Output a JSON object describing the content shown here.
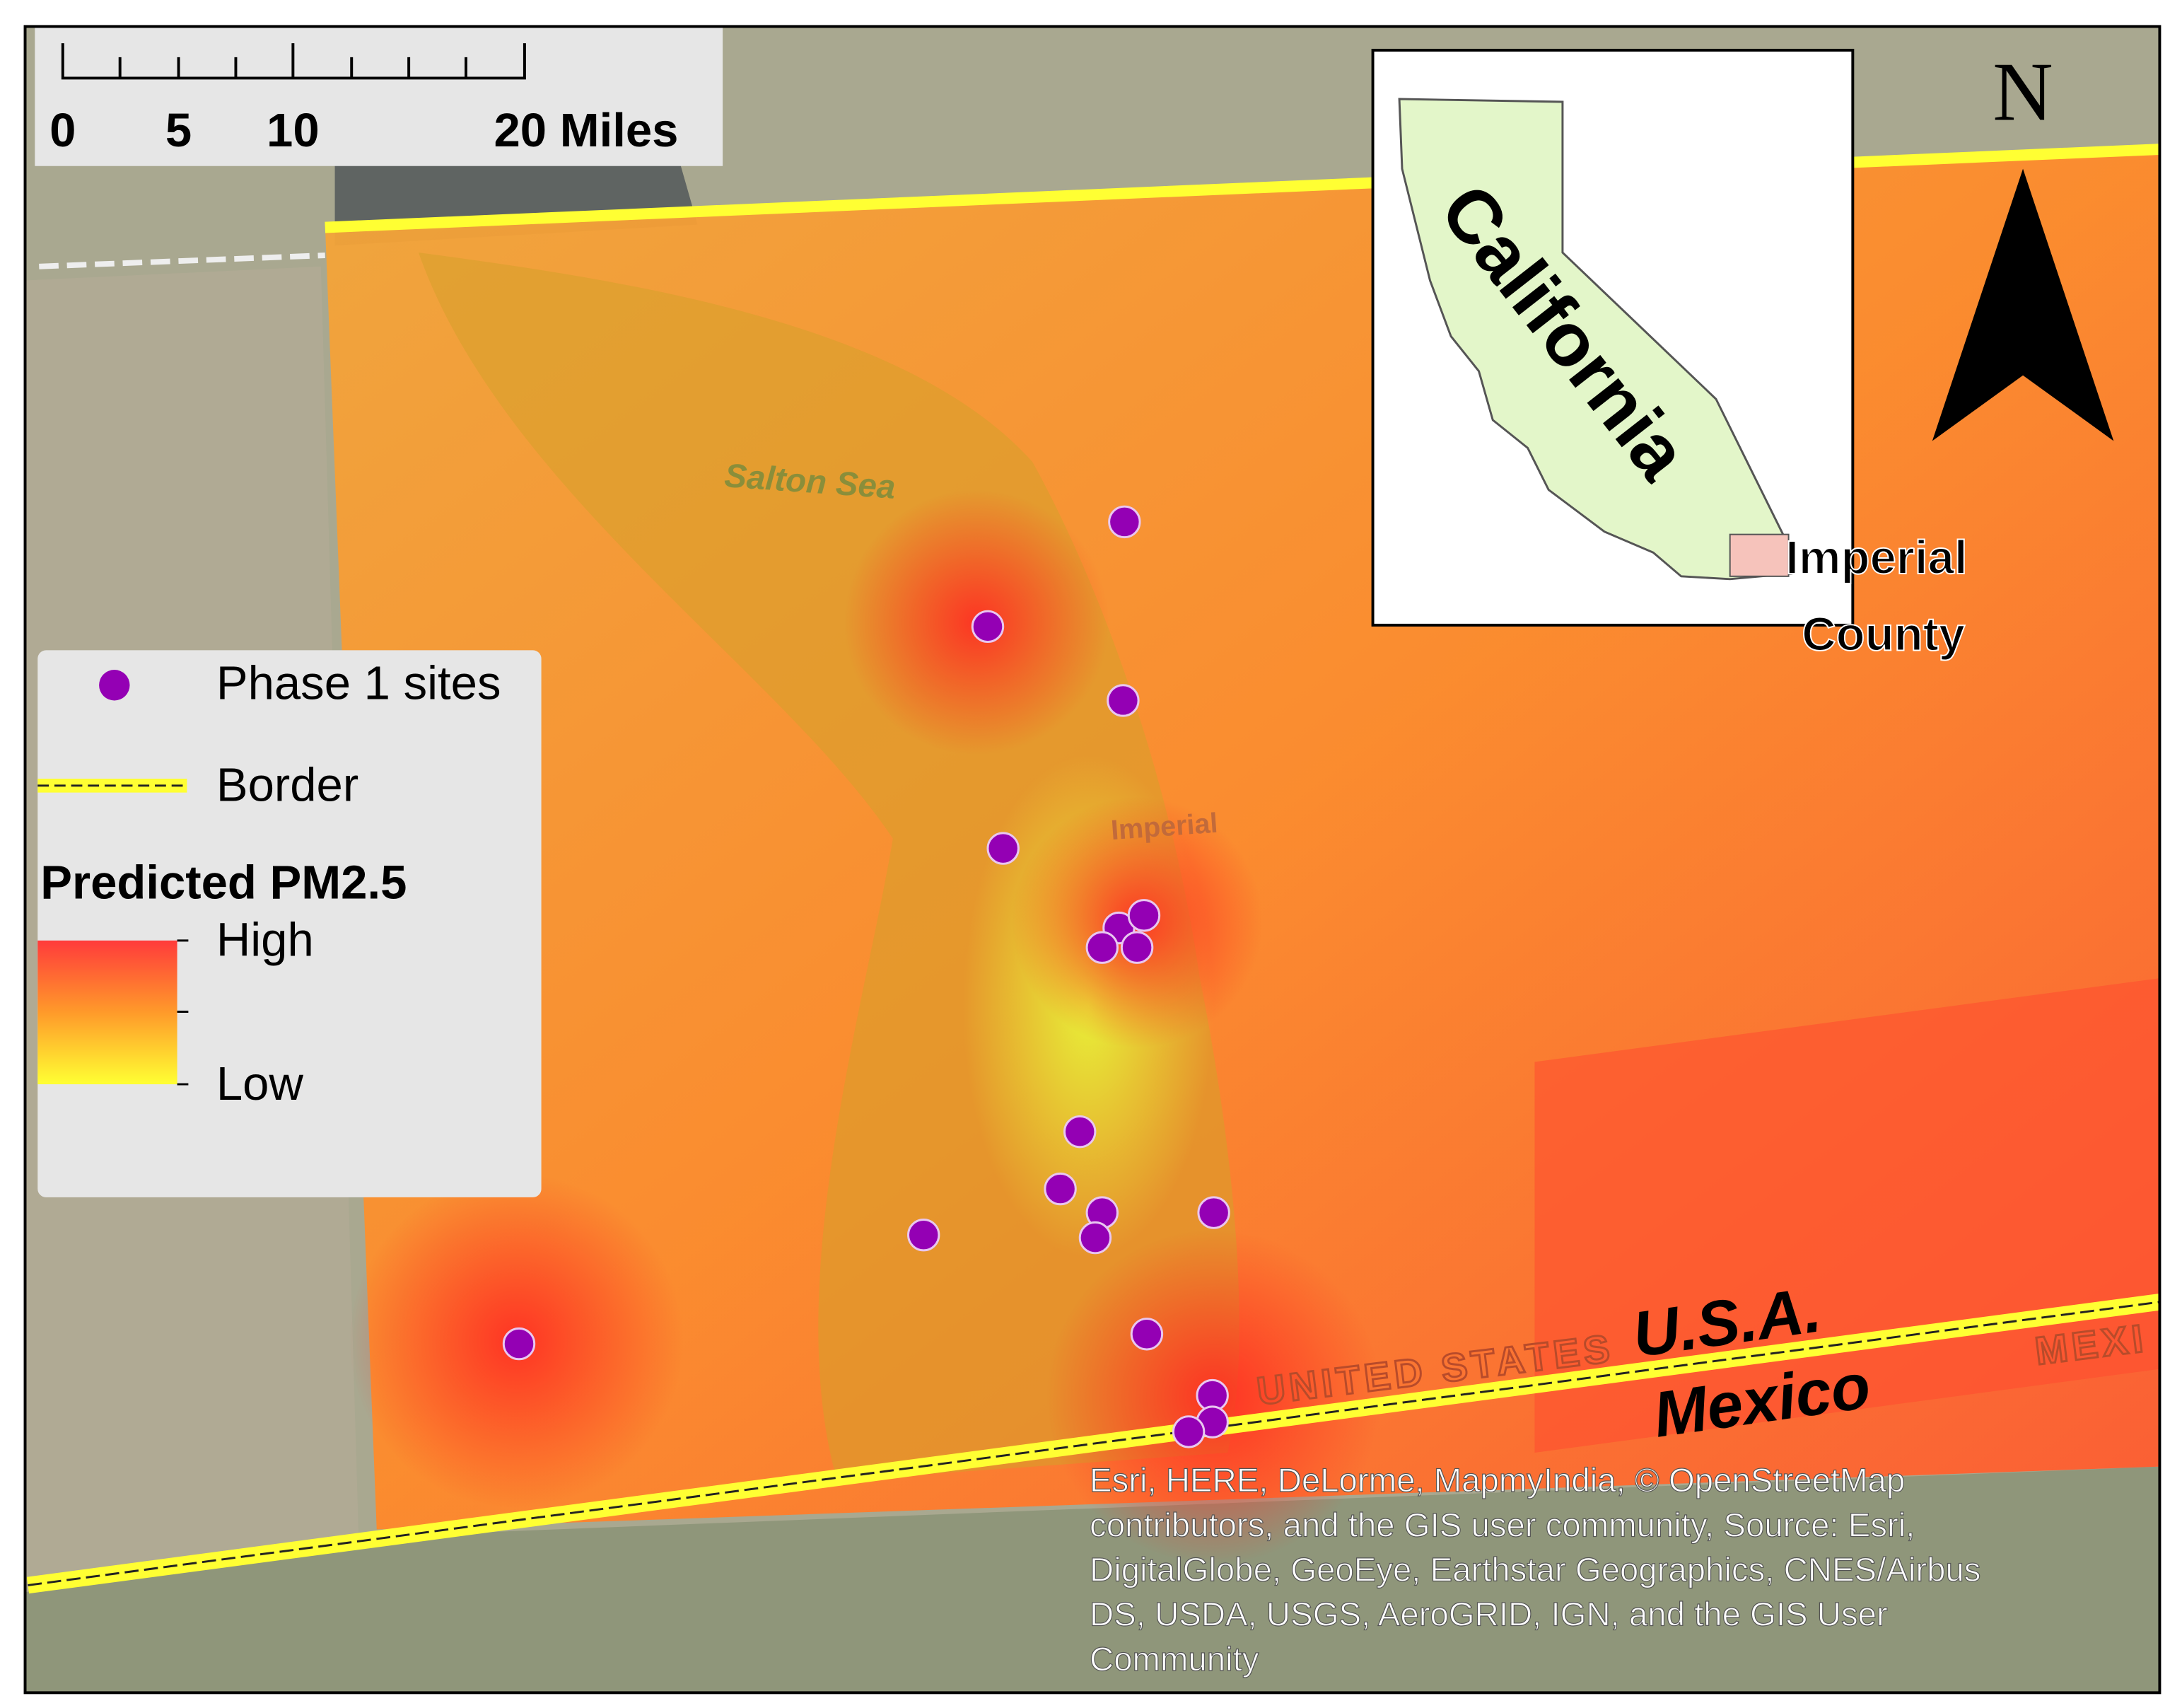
{
  "scale_bar": {
    "labels": [
      "0",
      "5",
      "10",
      "20 Miles"
    ]
  },
  "basemap_labels": {
    "sea": "Salton Sea",
    "city": "Imperial",
    "country_us": "UNITED STATES",
    "country_mx": "MEXI"
  },
  "legend": {
    "sites": "Phase 1 sites",
    "border": "Border",
    "surface_title": "Predicted PM2.5",
    "high": "High",
    "low": "Low"
  },
  "inset": {
    "state": "California",
    "county_line1": "Imperial",
    "county_line2": "County"
  },
  "north": "N",
  "border_labels": {
    "north_side": "U.S.A.",
    "south_side": "Mexico"
  },
  "attribution": [
    "Esri, HERE, DeLorme, MapmyIndia, © OpenStreetMap",
    "contributors, and the GIS user community,  Source: Esri,",
    "DigitalGlobe, GeoEye, Earthstar Geographics, CNES/Airbus",
    "DS, USDA, USGS, AeroGRID, IGN, and the GIS User",
    "Community"
  ]
}
